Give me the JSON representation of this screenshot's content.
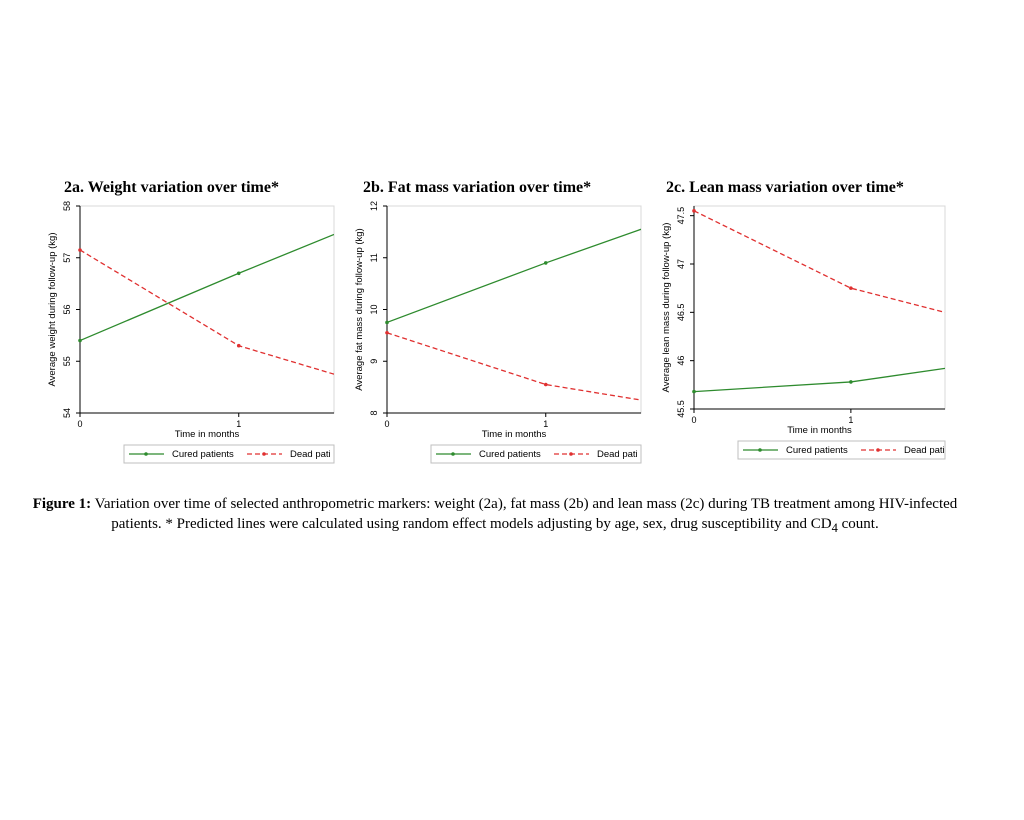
{
  "chart_data": [
    {
      "type": "line",
      "title": "2a. Weight variation over time*",
      "xlabel": "Time in months",
      "ylabel": "Average weight during follow-up (kg)",
      "xlim": [
        0,
        1.6
      ],
      "ylim": [
        54,
        58
      ],
      "xticks": [
        0,
        1
      ],
      "yticks": [
        54,
        55,
        56,
        57,
        58
      ],
      "legend_position": "bottom",
      "series": [
        {
          "name": "Cured patients",
          "color": "#2e8b2e",
          "style": "solid",
          "x": [
            0,
            1,
            1.6
          ],
          "y": [
            55.4,
            56.7,
            57.45
          ]
        },
        {
          "name": "Dead pati",
          "color": "#e03030",
          "style": "dashed",
          "x": [
            0,
            1,
            1.6
          ],
          "y": [
            57.15,
            55.3,
            54.75
          ]
        }
      ]
    },
    {
      "type": "line",
      "title": "2b. Fat mass variation over time*",
      "xlabel": "Time in months",
      "ylabel": "Average fat mass during follow-up (kg)",
      "xlim": [
        0,
        1.6
      ],
      "ylim": [
        8,
        12
      ],
      "xticks": [
        0,
        1
      ],
      "yticks": [
        8,
        9,
        10,
        11,
        12
      ],
      "legend_position": "bottom",
      "series": [
        {
          "name": "Cured patients",
          "color": "#2e8b2e",
          "style": "solid",
          "x": [
            0,
            1,
            1.6
          ],
          "y": [
            9.75,
            10.9,
            11.55
          ]
        },
        {
          "name": "Dead pati",
          "color": "#e03030",
          "style": "dashed",
          "x": [
            0,
            1,
            1.6
          ],
          "y": [
            9.55,
            8.55,
            8.25
          ]
        }
      ]
    },
    {
      "type": "line",
      "title": "2c. Lean mass variation over time*",
      "xlabel": "Time in months",
      "ylabel": "Average lean mass during follow-up (kg)",
      "xlim": [
        0,
        1.6
      ],
      "ylim": [
        45.5,
        47.6
      ],
      "xticks": [
        0,
        1
      ],
      "yticks": [
        45.5,
        46,
        46.5,
        47,
        47.5
      ],
      "legend_position": "bottom",
      "series": [
        {
          "name": "Cured patients",
          "color": "#2e8b2e",
          "style": "solid",
          "x": [
            0,
            1,
            1.6
          ],
          "y": [
            45.68,
            45.78,
            45.92
          ]
        },
        {
          "name": "Dead pati",
          "color": "#e03030",
          "style": "dashed",
          "x": [
            0,
            1,
            1.6
          ],
          "y": [
            47.55,
            46.75,
            46.5
          ]
        }
      ]
    }
  ],
  "caption": {
    "label": "Figure 1:",
    "text_1": " Variation over time of selected anthropometric markers: weight (2a), fat mass (2b) and lean mass (2c) during TB treatment among HIV-infected patients. * Predicted lines were calculated using random effect models adjusting by age, sex, drug susceptibility and CD",
    "subscript": "4",
    "text_2": " count."
  }
}
